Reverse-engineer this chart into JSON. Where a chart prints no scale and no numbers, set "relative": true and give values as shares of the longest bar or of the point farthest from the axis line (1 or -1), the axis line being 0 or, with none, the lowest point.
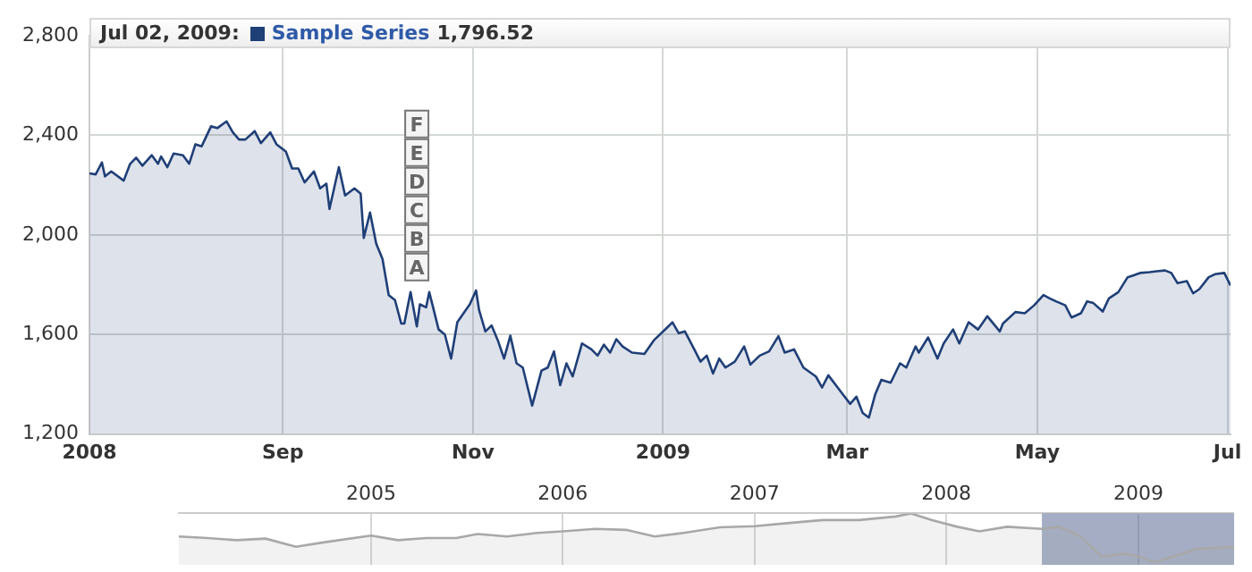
{
  "chart_data": [
    {
      "type": "area",
      "x": [
        "2008-07-01",
        "2008-07-03",
        "2008-07-05",
        "2008-07-06",
        "2008-07-08",
        "2008-07-12",
        "2008-07-14",
        "2008-07-16",
        "2008-07-18",
        "2008-07-21",
        "2008-07-23",
        "2008-07-24",
        "2008-07-26",
        "2008-07-28",
        "2008-07-31",
        "2008-08-02",
        "2008-08-04",
        "2008-08-06",
        "2008-08-09",
        "2008-08-11",
        "2008-08-14",
        "2008-08-16",
        "2008-08-18",
        "2008-08-20",
        "2008-08-23",
        "2008-08-25",
        "2008-08-28",
        "2008-08-30",
        "2008-09-02",
        "2008-09-04",
        "2008-09-06",
        "2008-09-08",
        "2008-09-11",
        "2008-09-13",
        "2008-09-15",
        "2008-09-16",
        "2008-09-19",
        "2008-09-21",
        "2008-09-24",
        "2008-09-26",
        "2008-09-27",
        "2008-09-29",
        "2008-10-01",
        "2008-10-03",
        "2008-10-05",
        "2008-10-07",
        "2008-10-09",
        "2008-10-10",
        "2008-10-12",
        "2008-10-14",
        "2008-10-15",
        "2008-10-17",
        "2008-10-18",
        "2008-10-21",
        "2008-10-23",
        "2008-10-25",
        "2008-10-27",
        "2008-10-29",
        "2008-10-31",
        "2008-11-02",
        "2008-11-03",
        "2008-11-05",
        "2008-11-07",
        "2008-11-09",
        "2008-11-11",
        "2008-11-13",
        "2008-11-15",
        "2008-11-17",
        "2008-11-20",
        "2008-11-23",
        "2008-11-25",
        "2008-11-27",
        "2008-11-29",
        "2008-12-01",
        "2008-12-03",
        "2008-12-06",
        "2008-12-09",
        "2008-12-11",
        "2008-12-13",
        "2008-12-15",
        "2008-12-17",
        "2008-12-19",
        "2008-12-22",
        "2008-12-26",
        "2008-12-29",
        "2009-01-02",
        "2009-01-04",
        "2009-01-06",
        "2009-01-08",
        "2009-01-11",
        "2009-01-13",
        "2009-01-15",
        "2009-01-17",
        "2009-01-19",
        "2009-01-21",
        "2009-01-24",
        "2009-01-27",
        "2009-01-29",
        "2009-02-01",
        "2009-02-04",
        "2009-02-07",
        "2009-02-09",
        "2009-02-12",
        "2009-02-15",
        "2009-02-19",
        "2009-02-21",
        "2009-02-23",
        "2009-02-27",
        "2009-03-02",
        "2009-03-04",
        "2009-03-06",
        "2009-03-08",
        "2009-03-10",
        "2009-03-12",
        "2009-03-15",
        "2009-03-18",
        "2009-03-20",
        "2009-03-23",
        "2009-03-24",
        "2009-03-27",
        "2009-03-30",
        "2009-04-01",
        "2009-04-04",
        "2009-04-06",
        "2009-04-09",
        "2009-04-12",
        "2009-04-15",
        "2009-04-19",
        "2009-04-20",
        "2009-04-24",
        "2009-04-27",
        "2009-04-30",
        "2009-05-03",
        "2009-05-05",
        "2009-05-07",
        "2009-05-10",
        "2009-05-12",
        "2009-05-15",
        "2009-05-17",
        "2009-05-19",
        "2009-05-22",
        "2009-05-24",
        "2009-05-27",
        "2009-05-30",
        "2009-06-01",
        "2009-06-03",
        "2009-06-06",
        "2009-06-09",
        "2009-06-11",
        "2009-06-13",
        "2009-06-15",
        "2009-06-18",
        "2009-06-20",
        "2009-06-22",
        "2009-06-25",
        "2009-06-27",
        "2009-06-30",
        "2009-07-02"
      ],
      "series": [
        {
          "name": "Sample Series",
          "color": "#1f3f77",
          "values": [
            2247,
            2243,
            2291,
            2235,
            2255,
            2218,
            2284,
            2310,
            2278,
            2320,
            2286,
            2315,
            2272,
            2327,
            2320,
            2286,
            2364,
            2356,
            2436,
            2429,
            2456,
            2412,
            2383,
            2383,
            2417,
            2369,
            2412,
            2364,
            2335,
            2267,
            2267,
            2211,
            2255,
            2187,
            2206,
            2104,
            2272,
            2158,
            2187,
            2165,
            1988,
            2090,
            1964,
            1903,
            1758,
            1738,
            1644,
            1644,
            1770,
            1632,
            1721,
            1709,
            1770,
            1620,
            1600,
            1503,
            1649,
            1685,
            1721,
            1777,
            1697,
            1612,
            1636,
            1576,
            1503,
            1595,
            1484,
            1467,
            1314,
            1455,
            1467,
            1532,
            1396,
            1484,
            1431,
            1564,
            1540,
            1515,
            1559,
            1527,
            1581,
            1552,
            1527,
            1522,
            1576,
            1624,
            1649,
            1605,
            1612,
            1540,
            1491,
            1515,
            1443,
            1503,
            1467,
            1491,
            1552,
            1479,
            1515,
            1532,
            1593,
            1527,
            1540,
            1467,
            1431,
            1387,
            1436,
            1370,
            1321,
            1350,
            1285,
            1266,
            1358,
            1418,
            1406,
            1484,
            1467,
            1552,
            1527,
            1588,
            1503,
            1564,
            1620,
            1564,
            1649,
            1620,
            1673,
            1612,
            1644,
            1690,
            1685,
            1717,
            1758,
            1745,
            1733,
            1717,
            1668,
            1685,
            1733,
            1726,
            1692,
            1745,
            1770,
            1830,
            1838,
            1847,
            1850,
            1855,
            1857,
            1847,
            1806,
            1814,
            1765,
            1782,
            1830,
            1842,
            1847,
            1796.52
          ]
        }
      ],
      "xlim": [
        "2008-07-01",
        "2009-07-02"
      ],
      "xticks": [
        {
          "value": "2008-07-01",
          "label": "2008"
        },
        {
          "value": "2008-09-01",
          "label": "Sep"
        },
        {
          "value": "2008-11-01",
          "label": "Nov"
        },
        {
          "value": "2009-01-01",
          "label": "2009"
        },
        {
          "value": "2009-03-01",
          "label": "Mar"
        },
        {
          "value": "2009-05-01",
          "label": "May"
        },
        {
          "value": "2009-07-01",
          "label": "Jul"
        }
      ],
      "ylim": [
        1200,
        2800
      ],
      "yticks": [
        {
          "value": 1200,
          "label": "1,200"
        },
        {
          "value": 1600,
          "label": "1,600"
        },
        {
          "value": 2000,
          "label": "2,000"
        },
        {
          "value": 2400,
          "label": "2,400"
        },
        {
          "value": 2800,
          "label": "2,800"
        }
      ],
      "grid": true,
      "legend": "top left",
      "annotations": [
        "Jul 02, 2009:",
        "1,796.52",
        {
          "text": "A",
          "x": "2008-10-14"
        },
        {
          "text": "B",
          "x": "2008-10-14"
        },
        {
          "text": "C",
          "x": "2008-10-14"
        },
        {
          "text": "D",
          "x": "2008-10-14"
        },
        {
          "text": "E",
          "x": "2008-10-14"
        },
        {
          "text": "F",
          "x": "2008-10-14"
        }
      ]
    },
    {
      "type": "area",
      "x": [
        "2004-01-01",
        "2004-02-24",
        "2004-04-20",
        "2004-06-14",
        "2004-08-11",
        "2004-10-05",
        "2005-01-01",
        "2005-02-21",
        "2005-04-17",
        "2005-06-12",
        "2005-07-23",
        "2005-09-17",
        "2005-11-14",
        "2006-01-01",
        "2006-03-04",
        "2006-05-01",
        "2006-06-25",
        "2006-08-19",
        "2006-10-27",
        "2007-01-01",
        "2007-03-04",
        "2007-05-11",
        "2007-07-19",
        "2007-09-27",
        "2007-10-26",
        "2007-12-05",
        "2008-01-22",
        "2008-03-04",
        "2008-04-26",
        "2008-07-01",
        "2008-08-03",
        "2008-09-13",
        "2008-10-23",
        "2008-12-05",
        "2009-01-02",
        "2009-02-01",
        "2009-03-06",
        "2009-04-22",
        "2009-07-02"
      ],
      "values": [
        0.55,
        0.52,
        0.48,
        0.51,
        0.35,
        0.44,
        0.57,
        0.48,
        0.52,
        0.52,
        0.6,
        0.55,
        0.62,
        0.65,
        0.7,
        0.68,
        0.55,
        0.62,
        0.73,
        0.75,
        0.81,
        0.87,
        0.87,
        0.94,
        1,
        0.87,
        0.74,
        0.65,
        0.74,
        0.7,
        0.74,
        0.55,
        0.16,
        0.22,
        0.16,
        0.05,
        0.16,
        0.31,
        0.35
      ],
      "color": "#a8a8a8",
      "relative": true,
      "xlim": [
        "2004-01-01",
        "2009-07-02"
      ],
      "xticks": [
        {
          "value": "2005-01-01",
          "label": "2005"
        },
        {
          "value": "2006-01-01",
          "label": "2006"
        },
        {
          "value": "2007-01-01",
          "label": "2007"
        },
        {
          "value": "2008-01-01",
          "label": "2008"
        },
        {
          "value": "2009-01-01",
          "label": "2009"
        }
      ],
      "tick_labels": "x",
      "grid": "x",
      "bands": [
        {
          "axis": "x",
          "from": "2008-07-01",
          "to": "2009-07-02",
          "color": "#5a6a94"
        }
      ]
    }
  ]
}
